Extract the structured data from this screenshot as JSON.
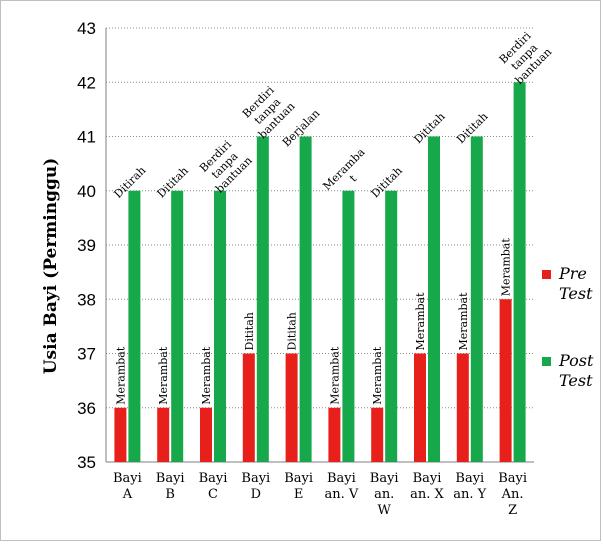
{
  "chart_data": {
    "type": "bar",
    "title": "",
    "xlabel": "",
    "ylabel": "Usia Bayi (Perminggu)",
    "ylim": [
      35,
      43
    ],
    "yticks": [
      "35",
      "36",
      "37",
      "38",
      "39",
      "40",
      "41",
      "42",
      "43"
    ],
    "grid": "horizontal dotted",
    "legend_position": "right",
    "categories": [
      [
        "Bayi",
        "A"
      ],
      [
        "Bayi",
        "B"
      ],
      [
        "Bayi",
        "C"
      ],
      [
        "Bayi",
        "D"
      ],
      [
        "Bayi",
        "E"
      ],
      [
        "Bayi",
        "an. V"
      ],
      [
        "Bayi",
        "an.",
        "W"
      ],
      [
        "Bayi",
        "an. X"
      ],
      [
        "Bayi",
        "an. Y"
      ],
      [
        "Bayi",
        "An.",
        "Z"
      ]
    ],
    "series": [
      {
        "name": [
          "Pre",
          "Test"
        ],
        "color": "#e8201c",
        "values": [
          36,
          36,
          36,
          37,
          37,
          36,
          36,
          37,
          37,
          38
        ],
        "labels": [
          [
            "Merambat"
          ],
          [
            "Merambat"
          ],
          [
            "Merambat"
          ],
          [
            "Dititah"
          ],
          [
            "Dititah"
          ],
          [
            "Merambat"
          ],
          [
            "Merambat"
          ],
          [
            "Merambat"
          ],
          [
            "Merambat"
          ],
          [
            "Merambat"
          ]
        ]
      },
      {
        "name": [
          "Post",
          "Test"
        ],
        "color": "#17a84b",
        "values": [
          40,
          40,
          40,
          41,
          41,
          40,
          40,
          41,
          41,
          42
        ],
        "labels": [
          [
            "Ditirah"
          ],
          [
            "Dititah"
          ],
          [
            "Berdiri",
            "tanpa",
            "bantuan"
          ],
          [
            "Berdiri",
            "tanpa",
            "bantuan"
          ],
          [
            "Berjalan"
          ],
          [
            "Meramba",
            "t"
          ],
          [
            "Dititah"
          ],
          [
            "Dititah"
          ],
          [
            "Dititah"
          ],
          [
            "Berdiri",
            "tanpa",
            "bantuan"
          ]
        ]
      }
    ]
  }
}
